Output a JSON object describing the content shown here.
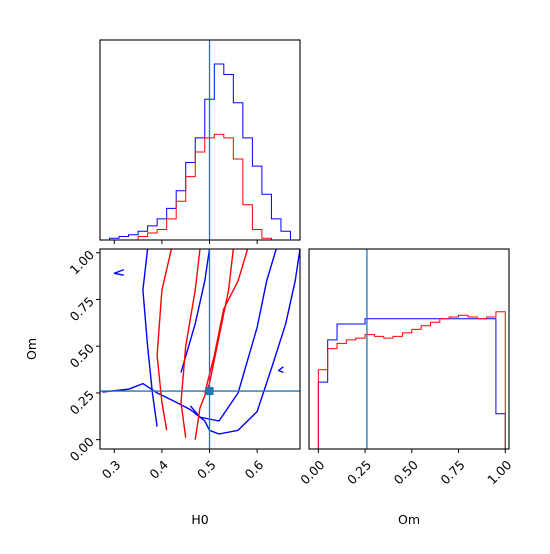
{
  "chart_data": {
    "type": "corner",
    "truth": {
      "H0": 0.5,
      "Om": 0.26
    },
    "colors": {
      "blue": "#0000ff",
      "red": "#ff0000",
      "truth": "#1f77b4"
    },
    "H0_axis": {
      "label": "H0",
      "range": [
        0.27,
        0.69
      ],
      "ticks": [
        "0.3",
        "0.4",
        "0.5",
        "0.6"
      ]
    },
    "Om_axis": {
      "label": "Om",
      "range": [
        -0.05,
        1.02
      ],
      "ticks": [
        "0.00",
        "0.25",
        "0.50",
        "0.75",
        "1.00"
      ]
    },
    "hist_H0": {
      "x_edges": [
        0.27,
        0.29,
        0.31,
        0.33,
        0.35,
        0.37,
        0.39,
        0.41,
        0.43,
        0.45,
        0.47,
        0.49,
        0.51,
        0.53,
        0.55,
        0.57,
        0.59,
        0.61,
        0.63,
        0.65,
        0.67,
        0.69
      ],
      "blue": [
        0.0,
        0.01,
        0.02,
        0.03,
        0.05,
        0.08,
        0.12,
        0.18,
        0.28,
        0.44,
        0.58,
        0.8,
        1.0,
        0.94,
        0.78,
        0.58,
        0.42,
        0.26,
        0.12,
        0.05,
        0.0
      ],
      "red": [
        0.0,
        0.0,
        0.0,
        0.0,
        0.02,
        0.04,
        0.06,
        0.12,
        0.22,
        0.36,
        0.5,
        0.58,
        0.6,
        0.58,
        0.46,
        0.2,
        0.06,
        0.01,
        0.0,
        0.0,
        0.0
      ]
    },
    "hist_Om": {
      "x_edges": [
        -0.05,
        0.0,
        0.05,
        0.1,
        0.15,
        0.2,
        0.25,
        0.3,
        0.35,
        0.4,
        0.45,
        0.5,
        0.55,
        0.6,
        0.65,
        0.7,
        0.75,
        0.8,
        0.85,
        0.9,
        0.95,
        1.0
      ],
      "blue": [
        0.0,
        0.38,
        0.62,
        0.71,
        0.71,
        0.71,
        0.74,
        0.74,
        0.74,
        0.74,
        0.74,
        0.74,
        0.74,
        0.74,
        0.74,
        0.74,
        0.74,
        0.74,
        0.74,
        0.74,
        0.2
      ],
      "red": [
        0.0,
        0.45,
        0.57,
        0.6,
        0.62,
        0.63,
        0.65,
        0.64,
        0.63,
        0.64,
        0.66,
        0.68,
        0.7,
        0.72,
        0.74,
        0.75,
        0.76,
        0.75,
        0.74,
        0.75,
        0.78
      ]
    },
    "contours_H0_Om": {
      "blue": [
        [
          [
            0.275,
            0.255
          ],
          [
            0.33,
            0.27
          ],
          [
            0.36,
            0.3
          ],
          [
            0.39,
            0.25
          ],
          [
            0.43,
            0.2
          ],
          [
            0.46,
            0.16
          ],
          [
            0.49,
            0.1
          ],
          [
            0.5,
            0.05
          ],
          [
            0.52,
            0.03
          ],
          [
            0.56,
            0.05
          ],
          [
            0.6,
            0.15
          ],
          [
            0.63,
            0.38
          ],
          [
            0.66,
            0.62
          ],
          [
            0.68,
            0.85
          ],
          [
            0.69,
            1.02
          ]
        ],
        [
          [
            0.46,
            0.18
          ],
          [
            0.48,
            0.12
          ],
          [
            0.52,
            0.1
          ],
          [
            0.56,
            0.25
          ],
          [
            0.6,
            0.6
          ],
          [
            0.62,
            0.85
          ],
          [
            0.64,
            1.02
          ]
        ],
        [
          [
            0.44,
            0.36
          ],
          [
            0.47,
            0.62
          ],
          [
            0.49,
            0.85
          ],
          [
            0.5,
            1.02
          ]
        ],
        [
          [
            0.39,
            0.07
          ],
          [
            0.38,
            0.25
          ],
          [
            0.37,
            0.5
          ],
          [
            0.36,
            0.8
          ],
          [
            0.37,
            1.02
          ]
        ],
        [
          [
            0.32,
            0.88
          ],
          [
            0.3,
            0.89
          ],
          [
            0.32,
            0.91
          ]
        ],
        [
          [
            0.655,
            0.39
          ],
          [
            0.645,
            0.37
          ],
          [
            0.655,
            0.36
          ]
        ]
      ],
      "red": [
        [
          [
            0.41,
            0.05
          ],
          [
            0.4,
            0.2
          ],
          [
            0.39,
            0.45
          ],
          [
            0.4,
            0.8
          ],
          [
            0.42,
            1.02
          ]
        ],
        [
          [
            0.45,
            0.01
          ],
          [
            0.44,
            0.2
          ],
          [
            0.45,
            0.5
          ],
          [
            0.47,
            0.8
          ],
          [
            0.48,
            1.02
          ]
        ],
        [
          [
            0.47,
            0.0
          ],
          [
            0.48,
            0.17
          ],
          [
            0.5,
            0.3
          ],
          [
            0.52,
            0.55
          ],
          [
            0.54,
            0.8
          ],
          [
            0.55,
            1.02
          ]
        ],
        [
          [
            0.49,
            0.25
          ],
          [
            0.51,
            0.45
          ],
          [
            0.53,
            0.7
          ],
          [
            0.56,
            0.85
          ],
          [
            0.58,
            1.02
          ]
        ]
      ]
    }
  }
}
